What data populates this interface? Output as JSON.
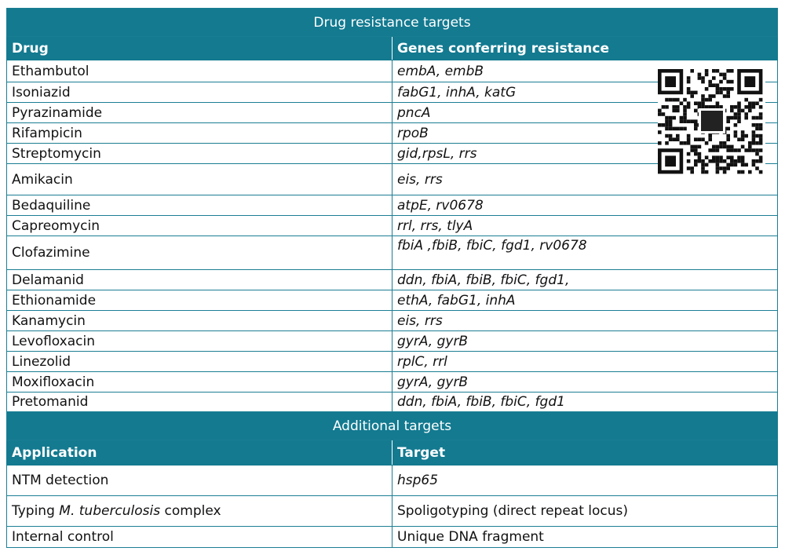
{
  "drug_table": {
    "title": "Drug resistance targets",
    "columns": [
      "Drug",
      "Genes conferring resistance"
    ],
    "rows": [
      [
        "Ethambutol",
        "embA, embB"
      ],
      [
        "Isoniazid",
        "fabG1, inhA, katG"
      ],
      [
        "Pyrazinamide",
        "pncA"
      ],
      [
        "Rifampicin",
        "rpoB"
      ],
      [
        "Streptomycin",
        "gid,rpsL, rrs"
      ],
      [
        "Amikacin",
        "eis, rrs"
      ],
      [
        "Bedaquiline",
        "atpE, rv0678"
      ],
      [
        "Capreomycin",
        "rrl, rrs, tlyA"
      ],
      [
        "Clofazimine",
        "fbiA ,fbiB, fbiC, fgd1, rv0678"
      ],
      [
        "Delamanid",
        "ddn, fbiA, fbiB, fbiC, fgd1,"
      ],
      [
        "Ethionamide",
        "ethA, fabG1, inhA"
      ],
      [
        "Kanamycin",
        "eis, rrs"
      ],
      [
        "Levofloxacin",
        "gyrA, gyrB"
      ],
      [
        "Linezolid",
        "rplC, rrl"
      ],
      [
        "Moxifloxacin",
        "gyrA, gyrB"
      ],
      [
        "Pretomanid",
        "ddn, fbiA, fbiB, fbiC, fgd1"
      ]
    ]
  },
  "additional_table": {
    "title": "Additional targets",
    "columns": [
      "Application",
      "Target"
    ],
    "rows": [
      [
        "NTM detection",
        "hsp65"
      ],
      [
        [
          "Typing ",
          "M. tuberculosis",
          " complex"
        ],
        "Spoligotyping (direct repeat locus)"
      ],
      [
        "Internal control",
        "Unique DNA fragment"
      ]
    ]
  }
}
